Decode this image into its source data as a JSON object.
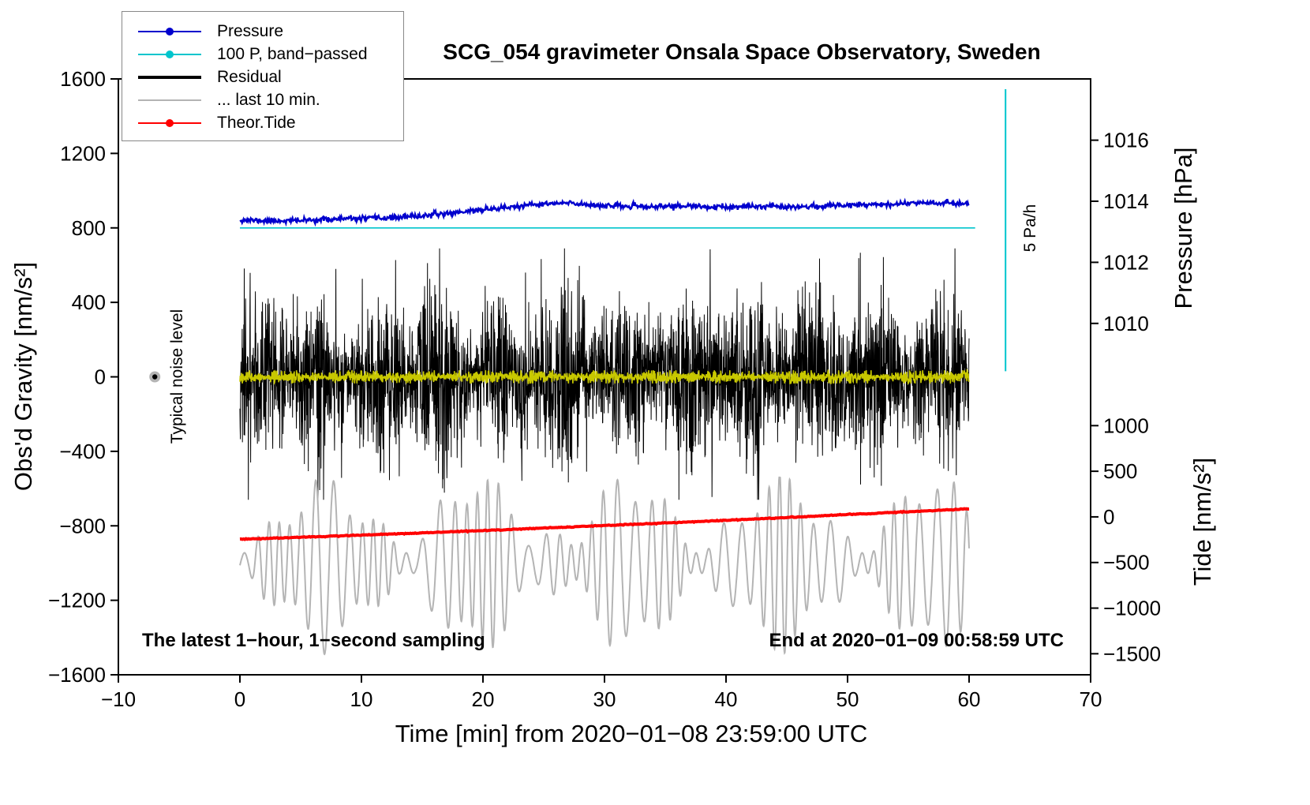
{
  "title": "SCG_054 gravimeter Onsala Space Observatory, Sweden",
  "legend": {
    "items": [
      {
        "label": "Pressure",
        "color": "#0000cd",
        "marker": "line-dot"
      },
      {
        "label": "100 P, band−passed",
        "color": "#00c5cd",
        "marker": "line-dot"
      },
      {
        "label": "Residual",
        "color": "#000000",
        "marker": "line-thick"
      },
      {
        "label": "... last 10 min.",
        "color": "#b4b4b4",
        "marker": "line"
      },
      {
        "label": "Theor.Tide",
        "color": "#ff0000",
        "marker": "line-dot"
      }
    ]
  },
  "annotations": {
    "noise_label": "Typical noise level",
    "scale_label": "5 Pa/h",
    "sampling_note": "The latest 1−hour, 1−second sampling",
    "end_note": "End at 2020−01−09 00:58:59 UTC"
  },
  "chart_data": {
    "type": "line",
    "title": "SCG_054 gravimeter Onsala Space Observatory, Sweden",
    "xlabel": "Time [min] from 2020−01−08 23:59:00 UTC",
    "x_range": [
      -10,
      70
    ],
    "x_ticks": [
      -10,
      0,
      10,
      20,
      30,
      40,
      50,
      60,
      70
    ],
    "grid": false,
    "legend_position": "top-left",
    "axes": {
      "gravity": {
        "label": "Obs'd Gravity [nm/s²]",
        "range": [
          -1600,
          1600
        ],
        "ticks": [
          1600,
          1200,
          800,
          400,
          0,
          -400,
          -800,
          -1200,
          -1600
        ]
      },
      "pressure": {
        "label": "Pressure [hPa]",
        "ticks": [
          1016,
          1014,
          1012,
          1010
        ],
        "anchor_hpa": [
          1016,
          1010
        ],
        "anchor_gravity": [
          1271,
          287
        ]
      },
      "tide": {
        "label": "Tide [nm/s²]",
        "ticks": [
          1000,
          500,
          0,
          -500,
          -1000,
          -1500
        ],
        "anchor_tide": [
          1000,
          -1500
        ],
        "anchor_gravity": [
          -262,
          -1487
        ]
      }
    },
    "series": [
      {
        "id": "pressure",
        "label": "Pressure",
        "color": "#0000cd",
        "axis": "pressure",
        "samples": 1000,
        "width": 2.4,
        "noise_gravity": 7,
        "seed": 11,
        "x": [
          0,
          2,
          5,
          8,
          11,
          14,
          17,
          20,
          23,
          25,
          27,
          29,
          31,
          34,
          36,
          38,
          40,
          42,
          44,
          46,
          48,
          50,
          52,
          54,
          56,
          58,
          60
        ],
        "values": [
          1013.39,
          1013.36,
          1013.37,
          1013.42,
          1013.44,
          1013.49,
          1013.6,
          1013.73,
          1013.83,
          1013.91,
          1013.94,
          1013.88,
          1013.84,
          1013.82,
          1013.85,
          1013.82,
          1013.8,
          1013.82,
          1013.85,
          1013.82,
          1013.84,
          1013.88,
          1013.91,
          1013.9,
          1013.97,
          1013.94,
          1013.92
        ]
      },
      {
        "id": "bandpassed_level",
        "label": "100 P, band−passed",
        "color": "#00c5cd",
        "type": "hline",
        "gravity": 800,
        "x": [
          0,
          60.5
        ]
      },
      {
        "id": "residual",
        "label": "Residual",
        "color": "#000000",
        "type": "noise",
        "center": 0,
        "sigma": 150,
        "x": [
          0,
          60
        ],
        "seed": 7,
        "points": 3200,
        "width": 1,
        "clip": [
          -660,
          690
        ],
        "spikes": [
          [
            38.7,
            685
          ],
          [
            38.85,
            -645
          ],
          [
            7.9,
            580
          ],
          [
            12.3,
            -555
          ],
          [
            23.5,
            560
          ],
          [
            52.2,
            -540
          ]
        ]
      },
      {
        "id": "bandpassed_trace",
        "label": "band-passed pressure trace",
        "color": "#c8c800",
        "type": "noise",
        "center": 0,
        "sigma": 12,
        "x": [
          0,
          60
        ],
        "seed": 21,
        "points": 2500,
        "width": 1.6,
        "clip": [
          -35,
          35
        ],
        "spikes": []
      },
      {
        "id": "residual_last10",
        "label": "... last 10 min.",
        "color": "#b4b4b4",
        "type": "osc",
        "center": -1000,
        "x": [
          0,
          60
        ],
        "seed": 5,
        "clip": [
          -1545,
          -540
        ]
      },
      {
        "id": "theor_tide",
        "label": "Theor.Tide",
        "color": "#ff0000",
        "axis": "tide",
        "samples": 600,
        "width": 4,
        "noise_gravity": 1.2,
        "seed": 3,
        "x": [
          0,
          10,
          20,
          30,
          40,
          50,
          60
        ],
        "values": [
          -245,
          -200,
          -150,
          -95,
          -38,
          25,
          88
        ]
      }
    ],
    "scale_bar": {
      "x": 63,
      "gravity": [
        30,
        1545
      ],
      "color": "#00c5cd",
      "label": "5 Pa/h"
    },
    "noise_marker": {
      "x": -7,
      "gravity": 0,
      "label": "Typical noise level"
    }
  }
}
